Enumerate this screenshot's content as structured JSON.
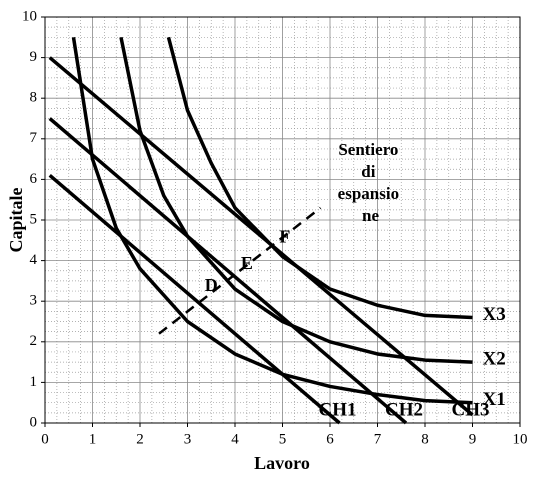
{
  "chart_data": {
    "type": "line",
    "x_label": "Lavoro",
    "y_label": "Capitale",
    "xlim": [
      0,
      10
    ],
    "ylim": [
      0,
      10
    ],
    "xticks": [
      0,
      1,
      2,
      3,
      4,
      5,
      6,
      7,
      8,
      9,
      10
    ],
    "yticks": [
      0,
      1,
      2,
      3,
      4,
      5,
      6,
      7,
      8,
      9,
      10
    ],
    "grid": true,
    "minor_grid": true,
    "series": [
      {
        "name": "X1",
        "color": "#000000",
        "x": [
          0.6,
          1,
          1.5,
          2,
          3,
          4,
          5,
          6,
          7,
          8,
          9
        ],
        "values": [
          9.5,
          6.5,
          4.8,
          3.8,
          2.5,
          1.7,
          1.2,
          0.9,
          0.7,
          0.55,
          0.5
        ]
      },
      {
        "name": "X2",
        "color": "#000000",
        "x": [
          1.6,
          2,
          2.5,
          3,
          4,
          5,
          6,
          7,
          8,
          9
        ],
        "values": [
          9.5,
          7.2,
          5.6,
          4.6,
          3.3,
          2.5,
          2.0,
          1.7,
          1.55,
          1.5
        ]
      },
      {
        "name": "X3",
        "color": "#000000",
        "x": [
          2.6,
          3,
          3.5,
          4,
          5,
          6,
          7,
          8,
          9
        ],
        "values": [
          9.5,
          7.7,
          6.4,
          5.3,
          4.1,
          3.3,
          2.9,
          2.65,
          2.6
        ]
      },
      {
        "name": "CH1",
        "color": "#000000",
        "x": [
          0.1,
          6.2
        ],
        "values": [
          6.1,
          0
        ]
      },
      {
        "name": "CH2",
        "color": "#000000",
        "x": [
          0.1,
          7.6
        ],
        "values": [
          7.5,
          0
        ]
      },
      {
        "name": "CH3",
        "color": "#000000",
        "x": [
          0.1,
          9.0
        ],
        "values": [
          9.0,
          0.2
        ]
      },
      {
        "name": "Sentiero di espansio ne",
        "color": "#000000",
        "dashed": true,
        "x": [
          2.4,
          5.8
        ],
        "values": [
          2.2,
          5.3
        ]
      }
    ],
    "annotations": [
      {
        "text": "D",
        "x": 3.5,
        "y": 3.35
      },
      {
        "text": "E",
        "x": 4.25,
        "y": 3.9
      },
      {
        "text": "F",
        "x": 5.05,
        "y": 4.55
      }
    ]
  }
}
